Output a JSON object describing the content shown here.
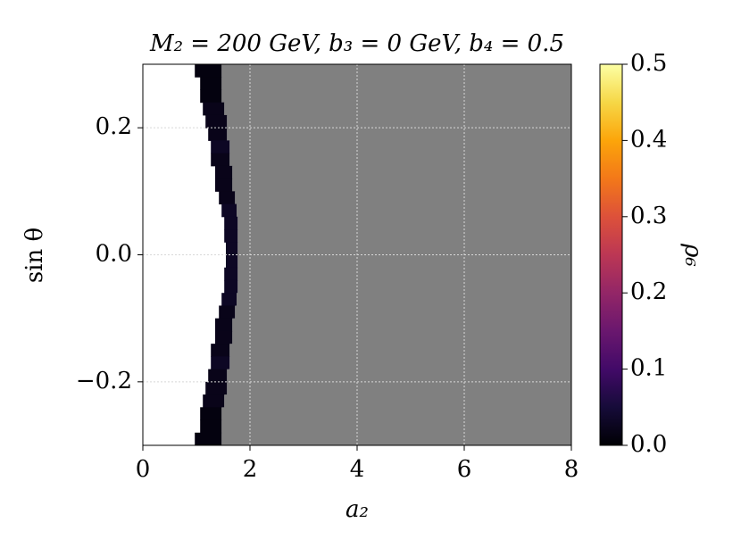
{
  "chart_data": {
    "type": "heatmap",
    "title": "M₂ = 200  GeV,  b₃ = 0  GeV,  b₄ = 0.5",
    "x_label": "a₂",
    "y_label": "sin θ",
    "colorbar_label": "ρ₆",
    "xlim": [
      0,
      8
    ],
    "ylim": [
      -0.3,
      0.3
    ],
    "xticks": [
      0,
      2,
      4,
      6,
      8
    ],
    "yticks": [
      {
        "value": -0.2,
        "label": "−0.2"
      },
      {
        "value": 0,
        "label": "0.0"
      },
      0.2
    ],
    "clim": [
      0,
      0.5
    ],
    "cticks": [
      {
        "value": 0,
        "label": "0.0"
      },
      0.1,
      0.2,
      0.3,
      0.4,
      0.5
    ],
    "colormap": [
      "#000004",
      "#160b39",
      "#420a68",
      "#6a176e",
      "#932667",
      "#bc3754",
      "#dd513a",
      "#f37819",
      "#fca50a",
      "#f6d746",
      "#fcffa4"
    ],
    "masked_color": "#808080",
    "grid": true,
    "cells": [
      {
        "a2": [
          0.97,
          1.47
        ],
        "sin_theta": [
          0.28,
          0.3
        ],
        "value": 0.01
      },
      {
        "a2": [
          1.07,
          1.47
        ],
        "sin_theta": [
          0.26,
          0.28
        ],
        "value": 0.01
      },
      {
        "a2": [
          1.07,
          1.47
        ],
        "sin_theta": [
          0.24,
          0.26
        ],
        "value": 0.01
      },
      {
        "a2": [
          1.12,
          1.52
        ],
        "sin_theta": [
          0.22,
          0.24
        ],
        "value": 0.02
      },
      {
        "a2": [
          1.17,
          1.57
        ],
        "sin_theta": [
          0.2,
          0.22
        ],
        "value": 0.02
      },
      {
        "a2": [
          1.22,
          1.57
        ],
        "sin_theta": [
          0.18,
          0.2
        ],
        "value": 0.02
      },
      {
        "a2": [
          1.27,
          1.62
        ],
        "sin_theta": [
          0.16,
          0.18
        ],
        "value": 0.03
      },
      {
        "a2": [
          1.27,
          1.62
        ],
        "sin_theta": [
          0.14,
          0.16
        ],
        "value": 0.02
      },
      {
        "a2": [
          1.35,
          1.67
        ],
        "sin_theta": [
          0.12,
          0.14
        ],
        "value": 0.02
      },
      {
        "a2": [
          1.35,
          1.67
        ],
        "sin_theta": [
          0.1,
          0.12
        ],
        "value": 0.02
      },
      {
        "a2": [
          1.42,
          1.72
        ],
        "sin_theta": [
          0.08,
          0.1
        ],
        "value": 0.02
      },
      {
        "a2": [
          1.47,
          1.75
        ],
        "sin_theta": [
          0.06,
          0.08
        ],
        "value": 0.03
      },
      {
        "a2": [
          1.52,
          1.77
        ],
        "sin_theta": [
          0.04,
          0.06
        ],
        "value": 0.03
      },
      {
        "a2": [
          1.52,
          1.77
        ],
        "sin_theta": [
          0.02,
          0.04
        ],
        "value": 0.03
      },
      {
        "a2": [
          1.55,
          1.77
        ],
        "sin_theta": [
          0,
          0.02
        ],
        "value": 0.03
      },
      {
        "a2": [
          1.55,
          1.77
        ],
        "sin_theta": [
          -0.02,
          0
        ],
        "value": 0.03
      },
      {
        "a2": [
          1.52,
          1.77
        ],
        "sin_theta": [
          -0.04,
          -0.02
        ],
        "value": 0.03
      },
      {
        "a2": [
          1.52,
          1.77
        ],
        "sin_theta": [
          -0.06,
          -0.04
        ],
        "value": 0.03
      },
      {
        "a2": [
          1.47,
          1.75
        ],
        "sin_theta": [
          -0.08,
          -0.06
        ],
        "value": 0.03
      },
      {
        "a2": [
          1.42,
          1.72
        ],
        "sin_theta": [
          -0.1,
          -0.08
        ],
        "value": 0.02
      },
      {
        "a2": [
          1.35,
          1.67
        ],
        "sin_theta": [
          -0.12,
          -0.1
        ],
        "value": 0.02
      },
      {
        "a2": [
          1.35,
          1.67
        ],
        "sin_theta": [
          -0.14,
          -0.12
        ],
        "value": 0.02
      },
      {
        "a2": [
          1.27,
          1.62
        ],
        "sin_theta": [
          -0.16,
          -0.14
        ],
        "value": 0.02
      },
      {
        "a2": [
          1.27,
          1.62
        ],
        "sin_theta": [
          -0.18,
          -0.16
        ],
        "value": 0.03
      },
      {
        "a2": [
          1.22,
          1.57
        ],
        "sin_theta": [
          -0.2,
          -0.18
        ],
        "value": 0.02
      },
      {
        "a2": [
          1.17,
          1.57
        ],
        "sin_theta": [
          -0.22,
          -0.2
        ],
        "value": 0.02
      },
      {
        "a2": [
          1.12,
          1.52
        ],
        "sin_theta": [
          -0.24,
          -0.22
        ],
        "value": 0.02
      },
      {
        "a2": [
          1.07,
          1.47
        ],
        "sin_theta": [
          -0.26,
          -0.24
        ],
        "value": 0.01
      },
      {
        "a2": [
          1.07,
          1.47
        ],
        "sin_theta": [
          -0.28,
          -0.26
        ],
        "value": 0.01
      },
      {
        "a2": [
          0.97,
          1.47
        ],
        "sin_theta": [
          -0.3,
          -0.28
        ],
        "value": 0.01
      }
    ]
  }
}
